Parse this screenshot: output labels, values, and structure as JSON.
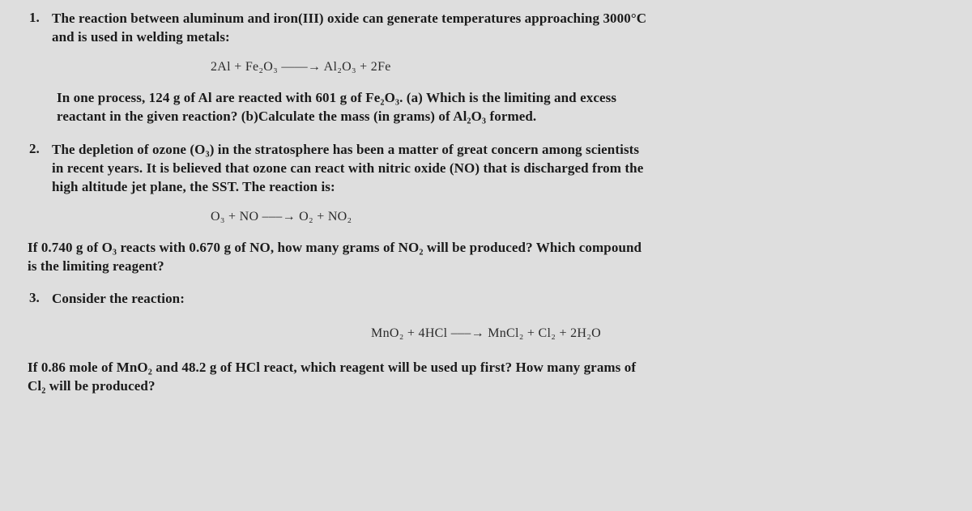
{
  "background_color": "#dedede",
  "text_color": "#1a1a1a",
  "equation_color": "#2b2b2b",
  "font_family_body": "Georgia, serif",
  "font_family_eq": "Times New Roman, serif",
  "font_size_body": 17,
  "font_size_eq": 16,
  "font_weight_body": "bold",
  "line_height": 1.35,
  "q1": {
    "num": "1.",
    "p1a": "The reaction between aluminum and iron(III) oxide can generate temperatures approaching 3000°C",
    "p1b": "and is used in welding metals:",
    "eq": "2Al  +  Fe₂O₃  ――→  Al₂O₃  +  2Fe",
    "p2a": "In one process, 124 g of Al are reacted with 601 g of Fe₂O₃. (a) Which is the limiting and excess",
    "p2b": "reactant in the given reaction? (b)Calculate the mass (in grams) of Al₂O₃ formed."
  },
  "q2": {
    "num": "2.",
    "p1a": "The depletion of ozone (O₃) in the stratosphere has been a matter of great concern among scientists",
    "p1b": "in recent years. It is believed that ozone can react with nitric oxide (NO) that is discharged from the",
    "p1c": "high altitude jet plane, the SST. The reaction is:",
    "eq": "O₃  +  NO   ‒‒‒→  O₂  +  NO₂",
    "p2a": "If 0.740 g of O₃ reacts with 0.670 g of NO, how many grams of NO₂ will be produced? Which compound",
    "p2b": "is the limiting reagent?"
  },
  "q3": {
    "num": "3.",
    "p1": "Consider the reaction:",
    "eq": "MnO₂  +  4HCl  ‒‒‒→  MnCl₂  +  Cl₂  +  2H₂O",
    "p2a": "If 0.86 mole of MnO₂ and 48.2 g of HCl react, which reagent will be used up first? How many grams of",
    "p2b": "Cl₂  will be produced?"
  }
}
